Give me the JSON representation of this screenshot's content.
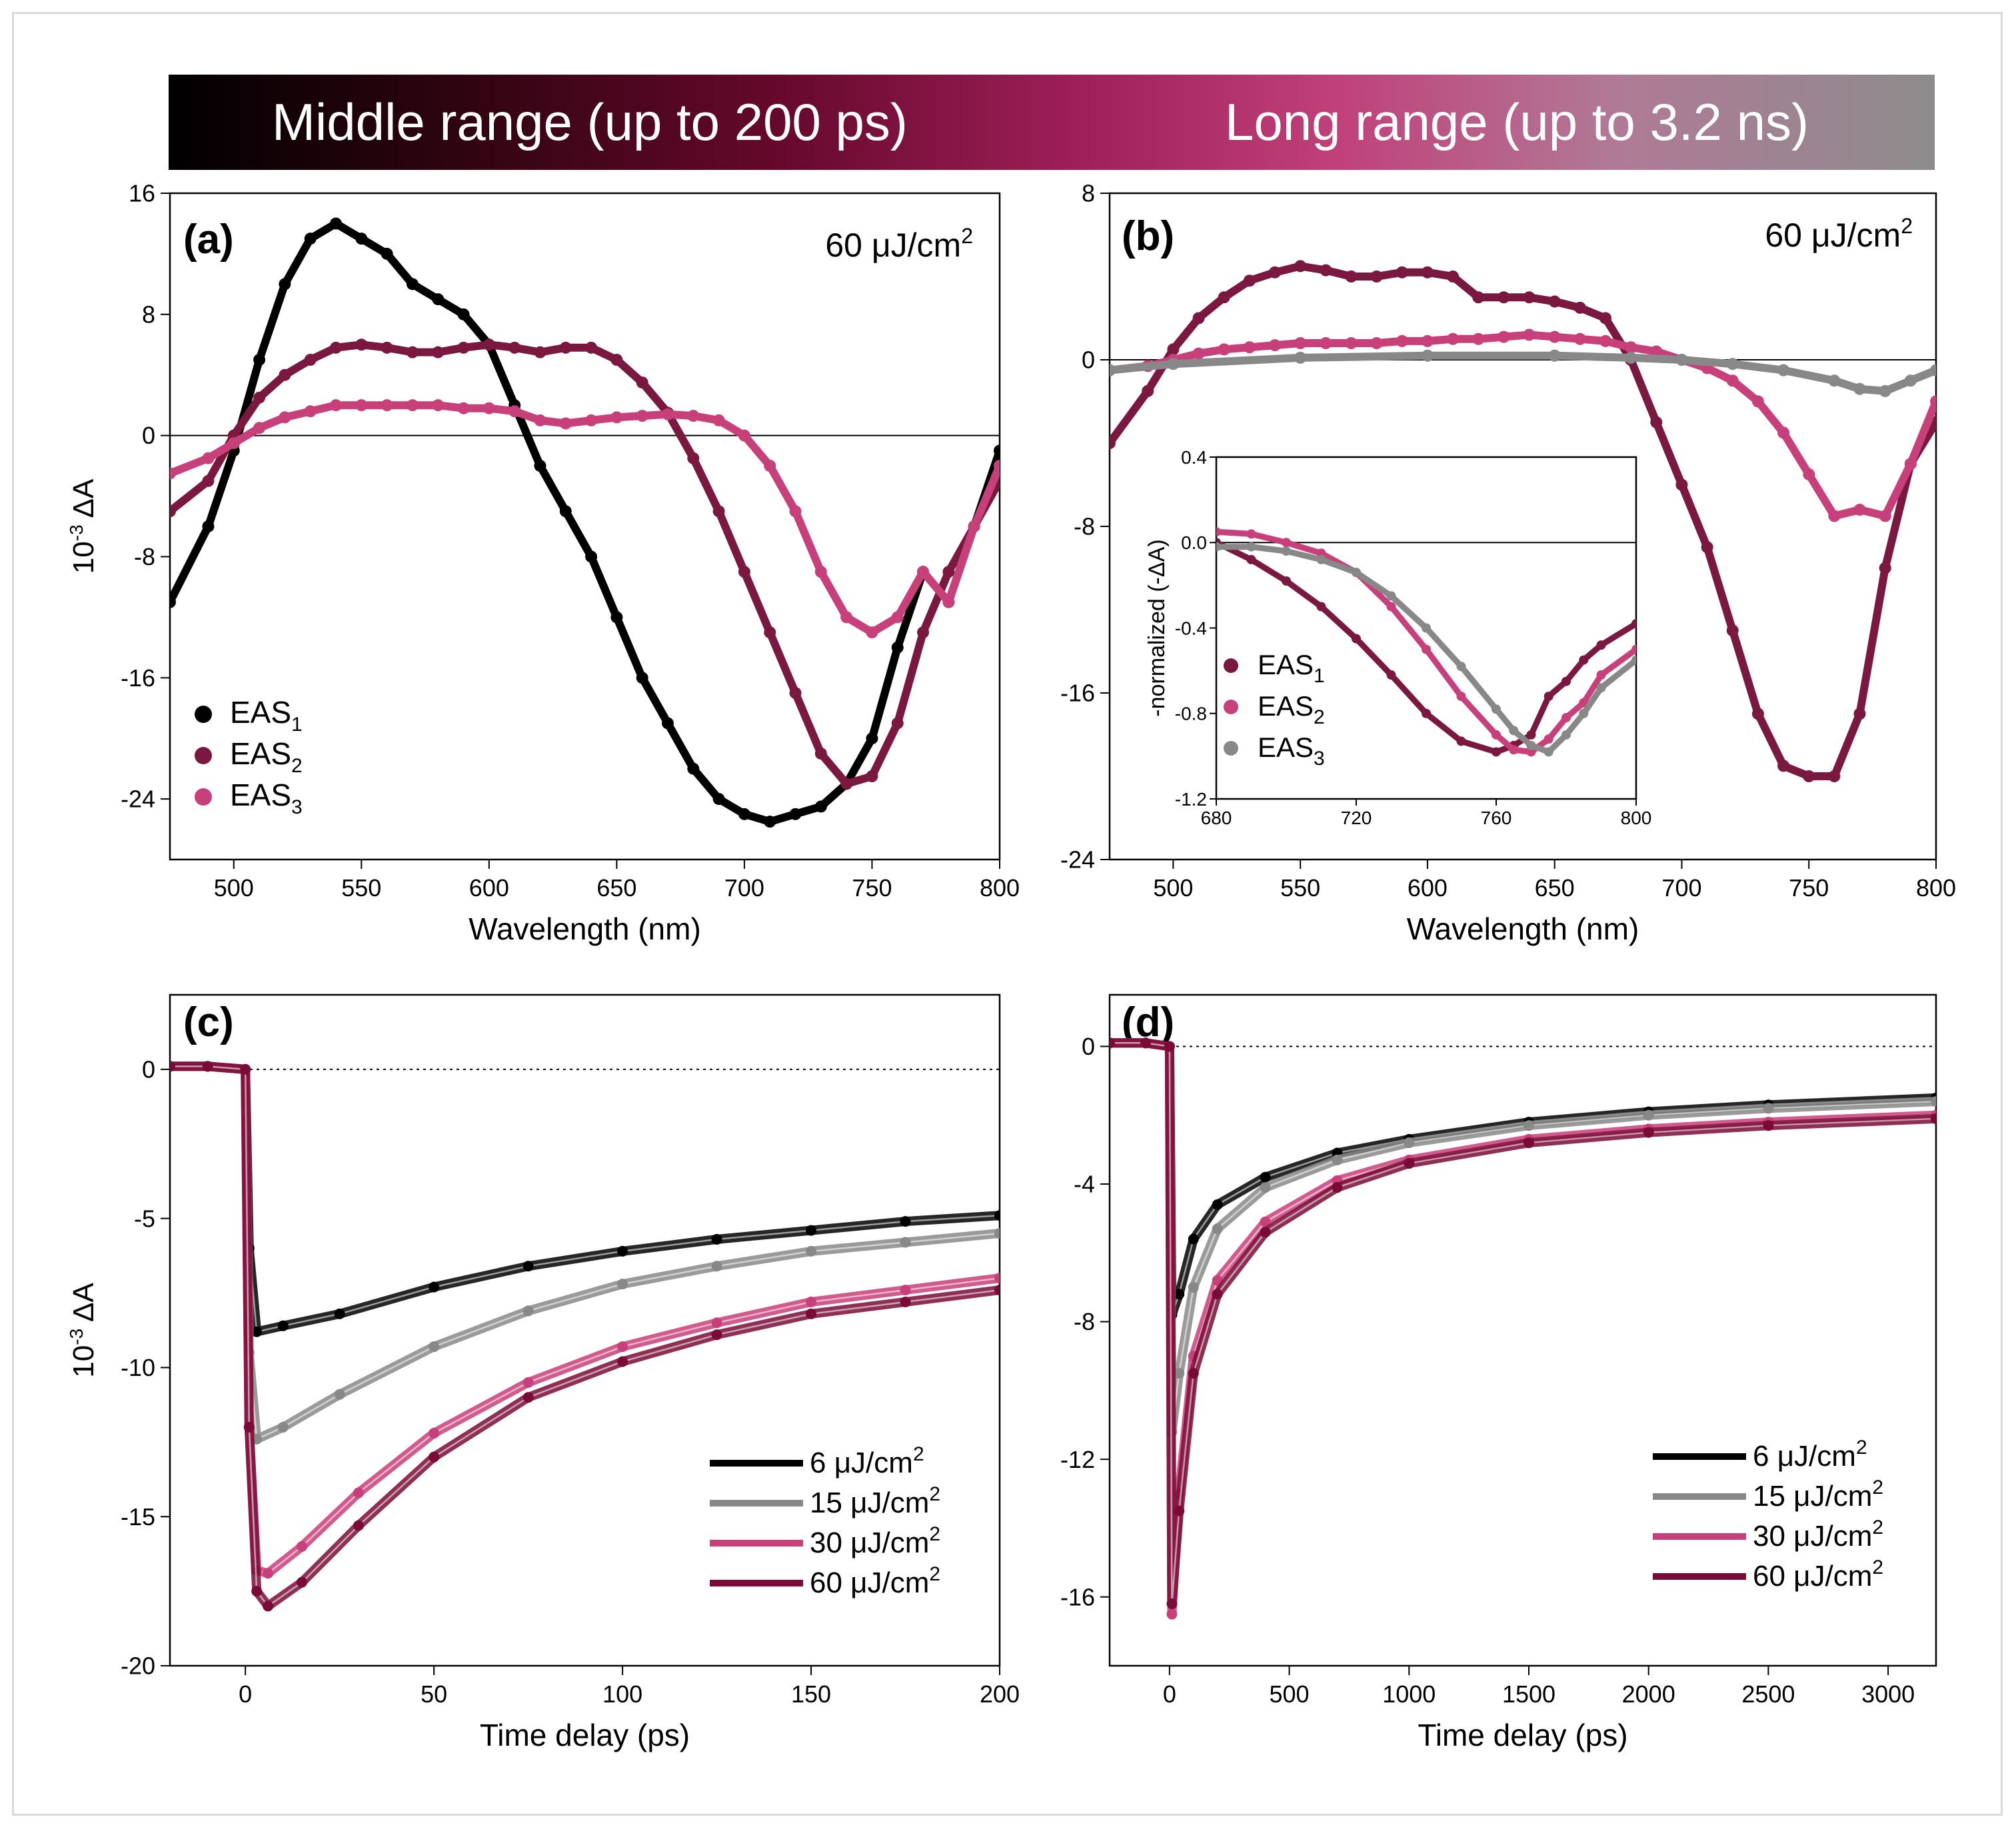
{
  "banner": {
    "left_label": "Middle range (up to 200 ps)",
    "right_label": "Long range (up to 3.2 ns)",
    "colors": [
      "#000000",
      "#64082a",
      "#c0407a",
      "#8c8c8c"
    ]
  },
  "colors": {
    "black": "#000000",
    "grey": "#888888",
    "pink": "#c8407a",
    "maroon": "#7a1840",
    "dark_maroon": "#7a0a36"
  },
  "chart_data": [
    {
      "id": "a",
      "type": "scatter",
      "panel_label": "(a)",
      "annotation": "60 μJ/cm",
      "annotation_sup": "2",
      "xlabel": "Wavelength (nm)",
      "ylabel": "10",
      "ylabel_sup": "-3",
      "ylabel_tail": " ΔA",
      "xlim": [
        475,
        800
      ],
      "ylim": [
        -28,
        16
      ],
      "xticks": [
        500,
        550,
        600,
        650,
        700,
        750,
        800
      ],
      "yticks": [
        16,
        8,
        0,
        -8,
        -16,
        -24
      ],
      "zero_line": "solid",
      "legend": [
        {
          "label": "EAS",
          "sub": "1",
          "color": "#000000"
        },
        {
          "label": "EAS",
          "sub": "2",
          "color": "#7a1840"
        },
        {
          "label": "EAS",
          "sub": "3",
          "color": "#c8407a"
        }
      ],
      "series": [
        {
          "name": "EAS1",
          "color": "#000000",
          "x": [
            475,
            490,
            500,
            510,
            520,
            530,
            540,
            550,
            560,
            570,
            580,
            590,
            600,
            610,
            620,
            630,
            640,
            650,
            660,
            670,
            680,
            690,
            700,
            710,
            720,
            730,
            740,
            750,
            760,
            770,
            780,
            790,
            800
          ],
          "y": [
            -11,
            -6,
            -1,
            5,
            10,
            13,
            14,
            13,
            12,
            10,
            9,
            8,
            6,
            2,
            -2,
            -5,
            -8,
            -12,
            -16,
            -19,
            -22,
            -24,
            -25,
            -25.5,
            -25,
            -24.5,
            -23,
            -20,
            -14,
            -9,
            -11,
            -6,
            -1
          ]
        },
        {
          "name": "EAS2",
          "color": "#7a1840",
          "x": [
            475,
            490,
            500,
            510,
            520,
            530,
            540,
            550,
            560,
            570,
            580,
            590,
            600,
            610,
            620,
            630,
            640,
            650,
            660,
            670,
            680,
            690,
            700,
            710,
            720,
            730,
            740,
            750,
            760,
            770,
            780,
            790,
            800
          ],
          "y": [
            -5,
            -3,
            0,
            2.5,
            4,
            5,
            5.8,
            6,
            5.8,
            5.5,
            5.5,
            5.8,
            6,
            5.8,
            5.5,
            5.8,
            5.8,
            5,
            3.5,
            1.5,
            -1.5,
            -5,
            -9,
            -13,
            -17,
            -21,
            -23,
            -22.5,
            -19,
            -13,
            -9,
            -6,
            -3
          ]
        },
        {
          "name": "EAS3",
          "color": "#c8407a",
          "x": [
            475,
            490,
            500,
            510,
            520,
            530,
            540,
            550,
            560,
            570,
            580,
            590,
            600,
            610,
            620,
            630,
            640,
            650,
            660,
            670,
            680,
            690,
            700,
            710,
            720,
            730,
            740,
            750,
            760,
            770,
            780,
            790,
            800
          ],
          "y": [
            -2.5,
            -1.5,
            -0.5,
            0.5,
            1.2,
            1.6,
            2,
            2,
            2,
            2,
            2,
            1.8,
            1.8,
            1.6,
            1,
            0.8,
            1,
            1.2,
            1.3,
            1.4,
            1.3,
            1,
            0,
            -2,
            -5,
            -9,
            -12,
            -13,
            -12,
            -9,
            -11,
            -6,
            -2
          ]
        }
      ]
    },
    {
      "id": "b",
      "type": "scatter",
      "panel_label": "(b)",
      "annotation": "60 μJ/cm",
      "annotation_sup": "2",
      "xlabel": "Wavelength (nm)",
      "xlim": [
        475,
        800
      ],
      "ylim": [
        -24,
        8
      ],
      "xticks": [
        500,
        550,
        600,
        650,
        700,
        750,
        800
      ],
      "yticks": [
        8,
        0,
        -8,
        -16,
        -24
      ],
      "zero_line": "solid",
      "series": [
        {
          "name": "EAS1",
          "color": "#7a1840",
          "x": [
            475,
            490,
            500,
            510,
            520,
            530,
            540,
            550,
            560,
            570,
            580,
            590,
            600,
            610,
            620,
            630,
            640,
            650,
            660,
            670,
            680,
            690,
            700,
            710,
            720,
            730,
            740,
            750,
            760,
            770,
            780,
            790,
            800
          ],
          "y": [
            -4,
            -1.5,
            0.5,
            2,
            3,
            3.8,
            4.2,
            4.5,
            4.3,
            4,
            4,
            4.2,
            4.2,
            4,
            3,
            3,
            3,
            2.8,
            2.5,
            2,
            0,
            -3,
            -6,
            -9,
            -13,
            -17,
            -19.5,
            -20,
            -20,
            -17,
            -10,
            -5,
            -3
          ]
        },
        {
          "name": "EAS2",
          "color": "#c8407a",
          "x": [
            475,
            490,
            500,
            510,
            520,
            530,
            540,
            550,
            560,
            570,
            580,
            590,
            600,
            610,
            620,
            630,
            640,
            650,
            660,
            670,
            680,
            690,
            700,
            710,
            720,
            730,
            740,
            750,
            760,
            770,
            780,
            790,
            800
          ],
          "y": [
            -0.5,
            -0.3,
            0,
            0.3,
            0.5,
            0.6,
            0.7,
            0.8,
            0.8,
            0.8,
            0.8,
            0.9,
            0.9,
            1,
            1,
            1.1,
            1.2,
            1.1,
            1,
            0.9,
            0.6,
            0.4,
            0,
            -0.4,
            -1,
            -2,
            -3.5,
            -5.5,
            -7.5,
            -7.2,
            -7.5,
            -5,
            -2
          ]
        },
        {
          "name": "EAS3",
          "color": "#888888",
          "x": [
            475,
            500,
            550,
            600,
            650,
            680,
            700,
            720,
            740,
            760,
            770,
            780,
            790,
            800
          ],
          "y": [
            -0.5,
            -0.2,
            0.1,
            0.2,
            0.2,
            0.1,
            0,
            -0.2,
            -0.5,
            -1,
            -1.4,
            -1.5,
            -1,
            -0.5
          ]
        }
      ]
    },
    {
      "id": "b-inset",
      "type": "scatter",
      "ylabel": "-normalized (-ΔA)",
      "xlim": [
        680,
        800
      ],
      "ylim": [
        -1.2,
        0.4
      ],
      "xticks": [
        680,
        720,
        760,
        800
      ],
      "yticks": [
        0.4,
        0.0,
        -0.4,
        -0.8,
        -1.2
      ],
      "ytick_labels": [
        "0.4",
        "0.0",
        "-0.4",
        "-0.8",
        "-1.2"
      ],
      "zero_line": "solid",
      "legend": [
        {
          "label": "EAS",
          "sub": "1",
          "color": "#7a1840"
        },
        {
          "label": "EAS",
          "sub": "2",
          "color": "#c8407a"
        },
        {
          "label": "EAS",
          "sub": "3",
          "color": "#888888"
        }
      ],
      "series": [
        {
          "name": "EAS1",
          "color": "#7a1840",
          "x": [
            680,
            690,
            700,
            710,
            720,
            730,
            740,
            750,
            760,
            765,
            770,
            775,
            780,
            785,
            790,
            800
          ],
          "y": [
            0,
            -0.08,
            -0.18,
            -0.3,
            -0.45,
            -0.62,
            -0.8,
            -0.93,
            -0.98,
            -0.95,
            -0.9,
            -0.72,
            -0.65,
            -0.55,
            -0.48,
            -0.38
          ]
        },
        {
          "name": "EAS2",
          "color": "#c8407a",
          "x": [
            680,
            690,
            700,
            710,
            720,
            730,
            740,
            750,
            760,
            765,
            770,
            775,
            780,
            785,
            790,
            800
          ],
          "y": [
            0.05,
            0.04,
            0,
            -0.05,
            -0.14,
            -0.3,
            -0.5,
            -0.72,
            -0.9,
            -0.97,
            -0.98,
            -0.92,
            -0.82,
            -0.75,
            -0.62,
            -0.5
          ]
        },
        {
          "name": "EAS3",
          "color": "#888888",
          "x": [
            680,
            690,
            700,
            710,
            720,
            730,
            740,
            750,
            760,
            765,
            770,
            775,
            780,
            785,
            790,
            800
          ],
          "y": [
            -0.02,
            -0.02,
            -0.04,
            -0.08,
            -0.14,
            -0.25,
            -0.4,
            -0.58,
            -0.78,
            -0.88,
            -0.95,
            -0.98,
            -0.9,
            -0.8,
            -0.68,
            -0.55
          ]
        }
      ]
    },
    {
      "id": "c",
      "type": "line",
      "panel_label": "(c)",
      "xlabel": "Time delay (ps)",
      "ylabel": "10",
      "ylabel_sup": "-3",
      "ylabel_tail": " ΔA",
      "xlim": [
        -20,
        200
      ],
      "ylim": [
        -20,
        2.5
      ],
      "xticks": [
        0,
        50,
        100,
        150,
        200
      ],
      "yticks": [
        0,
        -5,
        -10,
        -15,
        -20
      ],
      "zero_line": "dotted",
      "legend": [
        {
          "label": "6 μJ/cm",
          "sup": "2",
          "color": "#000000"
        },
        {
          "label": "15 μJ/cm",
          "sup": "2",
          "color": "#888888"
        },
        {
          "label": "30 μJ/cm",
          "sup": "2",
          "color": "#c8407a"
        },
        {
          "label": "60 μJ/cm",
          "sup": "2",
          "color": "#7a0a36"
        }
      ],
      "series": [
        {
          "name": "6 μJ/cm2",
          "color": "#000000",
          "x": [
            -20,
            -10,
            0,
            1,
            3,
            10,
            25,
            50,
            75,
            100,
            125,
            150,
            175,
            200
          ],
          "y": [
            0.1,
            0.1,
            0,
            -6,
            -8.8,
            -8.6,
            -8.2,
            -7.3,
            -6.6,
            -6.1,
            -5.7,
            -5.4,
            -5.1,
            -4.9
          ]
        },
        {
          "name": "15 μJ/cm2",
          "color": "#888888",
          "x": [
            -20,
            -10,
            0,
            1,
            3,
            10,
            25,
            50,
            75,
            100,
            125,
            150,
            175,
            200
          ],
          "y": [
            0.1,
            0.1,
            0,
            -9.5,
            -12.4,
            -12,
            -10.9,
            -9.3,
            -8.1,
            -7.2,
            -6.6,
            -6.1,
            -5.8,
            -5.5
          ]
        },
        {
          "name": "30 μJ/cm2",
          "color": "#c8407a",
          "x": [
            -20,
            -10,
            0,
            1,
            3,
            6,
            15,
            30,
            50,
            75,
            100,
            125,
            150,
            175,
            200
          ],
          "y": [
            0.1,
            0.1,
            0,
            -12,
            -16.8,
            -16.9,
            -16,
            -14.2,
            -12.2,
            -10.5,
            -9.3,
            -8.5,
            -7.8,
            -7.4,
            -7.0
          ]
        },
        {
          "name": "60 μJ/cm2",
          "color": "#7a0a36",
          "x": [
            -20,
            -10,
            0,
            1,
            3,
            6,
            15,
            30,
            50,
            75,
            100,
            125,
            150,
            175,
            200
          ],
          "y": [
            0.1,
            0.1,
            0,
            -12,
            -17.5,
            -18,
            -17.2,
            -15.3,
            -13,
            -11,
            -9.8,
            -8.9,
            -8.2,
            -7.8,
            -7.4
          ]
        }
      ]
    },
    {
      "id": "d",
      "type": "line",
      "panel_label": "(d)",
      "xlabel": "Time delay (ps)",
      "xlim": [
        -250,
        3200
      ],
      "ylim": [
        -18,
        1.5
      ],
      "xticks": [
        0,
        500,
        1000,
        1500,
        2000,
        2500,
        3000
      ],
      "yticks": [
        0,
        -4,
        -8,
        -12,
        -16
      ],
      "zero_line": "dotted",
      "legend": [
        {
          "label": "6 μJ/cm",
          "sup": "2",
          "color": "#000000"
        },
        {
          "label": "15 μJ/cm",
          "sup": "2",
          "color": "#888888"
        },
        {
          "label": "30 μJ/cm",
          "sup": "2",
          "color": "#c8407a"
        },
        {
          "label": "60 μJ/cm",
          "sup": "2",
          "color": "#7a0a36"
        }
      ],
      "series": [
        {
          "name": "6 μJ/cm2",
          "color": "#000000",
          "x": [
            -250,
            -100,
            0,
            10,
            40,
            100,
            200,
            400,
            700,
            1000,
            1500,
            2000,
            2500,
            3200
          ],
          "y": [
            0.1,
            0.1,
            0,
            -7.8,
            -7.2,
            -5.6,
            -4.6,
            -3.8,
            -3.1,
            -2.7,
            -2.2,
            -1.9,
            -1.7,
            -1.5
          ]
        },
        {
          "name": "15 μJ/cm2",
          "color": "#888888",
          "x": [
            -250,
            -100,
            0,
            10,
            40,
            100,
            200,
            400,
            700,
            1000,
            1500,
            2000,
            2500,
            3200
          ],
          "y": [
            0.1,
            0.1,
            0,
            -11.2,
            -9.5,
            -7,
            -5.3,
            -4.1,
            -3.3,
            -2.8,
            -2.3,
            -2,
            -1.8,
            -1.6
          ]
        },
        {
          "name": "30 μJ/cm2",
          "color": "#c8407a",
          "x": [
            -250,
            -100,
            0,
            10,
            40,
            100,
            200,
            400,
            700,
            1000,
            1500,
            2000,
            2500,
            3200
          ],
          "y": [
            0.1,
            0.1,
            0,
            -16.5,
            -13,
            -9,
            -6.8,
            -5.1,
            -3.9,
            -3.3,
            -2.7,
            -2.4,
            -2.2,
            -2.0
          ]
        },
        {
          "name": "60 μJ/cm2",
          "color": "#7a0a36",
          "x": [
            -250,
            -100,
            0,
            10,
            40,
            100,
            200,
            400,
            700,
            1000,
            1500,
            2000,
            2500,
            3200
          ],
          "y": [
            0.1,
            0.1,
            0,
            -16.2,
            -13.5,
            -9.5,
            -7.2,
            -5.4,
            -4.1,
            -3.4,
            -2.8,
            -2.5,
            -2.3,
            -2.1
          ]
        }
      ]
    }
  ]
}
